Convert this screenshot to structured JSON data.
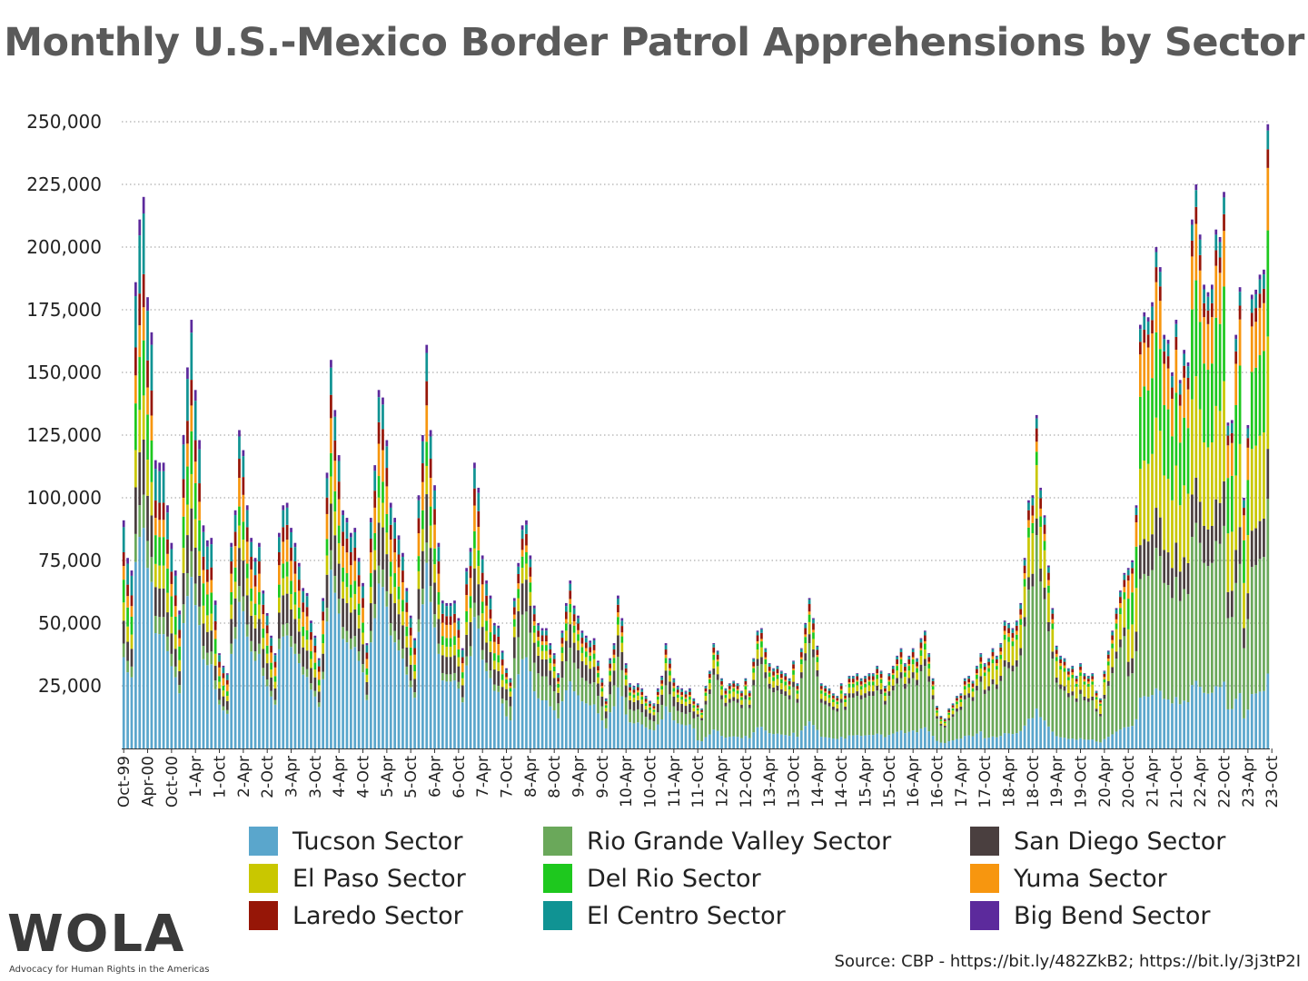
{
  "chart_data": {
    "type": "bar",
    "stacked": true,
    "title": "Monthly U.S.-Mexico Border Patrol Apprehensions by Sector",
    "ylim": [
      0,
      250000
    ],
    "yticks": [
      "25,000",
      "50,000",
      "75,000",
      "100,000",
      "125,000",
      "150,000",
      "175,000",
      "200,000",
      "225,000",
      "250,000"
    ],
    "ytick_values": [
      25000,
      50000,
      75000,
      100000,
      125000,
      150000,
      175000,
      200000,
      225000,
      250000
    ],
    "grid": "dotted horizontal",
    "legend_position": "bottom",
    "x_tick_labels": [
      "Oct-99",
      "Apr-00",
      "Oct-00",
      "1-Apr",
      "1-Oct",
      "2-Apr",
      "2-Oct",
      "3-Apr",
      "3-Oct",
      "4-Apr",
      "4-Oct",
      "5-Apr",
      "5-Oct",
      "6-Apr",
      "6-Oct",
      "7-Apr",
      "7-Oct",
      "8-Apr",
      "8-Oct",
      "9-Apr",
      "9-Oct",
      "10-Apr",
      "10-Oct",
      "11-Apr",
      "11-Oct",
      "12-Apr",
      "12-Oct",
      "13-Apr",
      "13-Oct",
      "14-Apr",
      "14-Oct",
      "15-Apr",
      "15-Oct",
      "16-Apr",
      "16-Oct",
      "17-Apr",
      "17-Oct",
      "18-Apr",
      "18-Oct",
      "19-Apr",
      "19-Oct",
      "20-Apr",
      "20-Oct",
      "21-Apr",
      "21-Oct",
      "22-Apr",
      "22-Oct",
      "23-Apr",
      "23-Oct"
    ],
    "sector_order": [
      "Tucson Sector",
      "Rio Grande Valley Sector",
      "San Diego Sector",
      "El Paso Sector",
      "Del Rio Sector",
      "Yuma Sector",
      "Laredo Sector",
      "El Centro Sector",
      "Big Bend Sector"
    ],
    "series": [
      {
        "name": "Tucson Sector",
        "color": "#5aa6cc"
      },
      {
        "name": "Rio Grande Valley Sector",
        "color": "#6aa85a"
      },
      {
        "name": "San Diego Sector",
        "color": "#4a3f3f"
      },
      {
        "name": "El Paso Sector",
        "color": "#c9c700"
      },
      {
        "name": "Del Rio Sector",
        "color": "#1ec81e"
      },
      {
        "name": "Yuma Sector",
        "color": "#f7960f"
      },
      {
        "name": "Laredo Sector",
        "color": "#961607"
      },
      {
        "name": "El Centro Sector",
        "color": "#109393"
      },
      {
        "name": "Big Bend Sector",
        "color": "#5c2a9c"
      }
    ],
    "totals_by_month": [
      91000,
      76000,
      71000,
      186000,
      211000,
      220000,
      180000,
      166000,
      115000,
      114000,
      114000,
      97000,
      82000,
      71000,
      55000,
      125000,
      152000,
      171000,
      143000,
      123000,
      89000,
      83000,
      84000,
      59000,
      38000,
      33000,
      30000,
      82000,
      95000,
      127000,
      119000,
      97000,
      84000,
      76000,
      82000,
      63000,
      54000,
      45000,
      38000,
      86000,
      97000,
      98000,
      88000,
      82000,
      74000,
      64000,
      62000,
      51000,
      45000,
      36000,
      60000,
      110000,
      155000,
      135000,
      117000,
      95000,
      92000,
      86000,
      88000,
      76000,
      66000,
      42000,
      92000,
      113000,
      143000,
      140000,
      123000,
      98000,
      92000,
      85000,
      78000,
      64000,
      53000,
      44000,
      101000,
      125000,
      161000,
      127000,
      105000,
      82000,
      59000,
      58000,
      58000,
      59000,
      52000,
      40000,
      72000,
      80000,
      114000,
      104000,
      77000,
      67000,
      61000,
      50000,
      49000,
      39000,
      32000,
      28000,
      60000,
      74000,
      89000,
      91000,
      77000,
      57000,
      50000,
      48000,
      48000,
      42000,
      38000,
      30000,
      47000,
      58000,
      67000,
      57000,
      53000,
      47000,
      45000,
      43000,
      44000,
      35000,
      28000,
      20000,
      36000,
      42000,
      61000,
      52000,
      34000,
      26000,
      25000,
      26000,
      24000,
      21000,
      19000,
      18000,
      24000,
      29000,
      42000,
      36000,
      28000,
      25000,
      24000,
      23000,
      24000,
      20000,
      18000,
      16000,
      25000,
      31000,
      42000,
      39000,
      28000,
      24000,
      26000,
      27000,
      26000,
      23000,
      28000,
      23000,
      36000,
      47000,
      48000,
      40000,
      34000,
      32000,
      33000,
      31000,
      30000,
      28000,
      35000,
      26000,
      40000,
      50000,
      60000,
      52000,
      41000,
      26000,
      25000,
      24000,
      22000,
      21000,
      26000,
      22000,
      29000,
      29000,
      30000,
      28000,
      29000,
      30000,
      30000,
      33000,
      31000,
      25000,
      30000,
      33000,
      37000,
      40000,
      34000,
      37000,
      40000,
      36000,
      44000,
      47000,
      38000,
      28000,
      17000,
      13000,
      12000,
      16000,
      18000,
      21000,
      22000,
      28000,
      29000,
      27000,
      33000,
      38000,
      34000,
      36000,
      40000,
      37000,
      42000,
      51000,
      50000,
      48000,
      51000,
      58000,
      76000,
      99000,
      101000,
      133000,
      104000,
      93000,
      73000,
      56000,
      41000,
      37000,
      36000,
      32000,
      33000,
      29000,
      34000,
      30000,
      29000,
      30000,
      23000,
      20000,
      31000,
      39000,
      47000,
      56000,
      63000,
      70000,
      72000,
      75000,
      97000,
      169000,
      174000,
      172000,
      178000,
      200000,
      192000,
      165000,
      163000,
      150000,
      171000,
      147000,
      159000,
      154000,
      211000,
      225000,
      205000,
      185000,
      182000,
      185000,
      207000,
      204000,
      222000,
      130000,
      131000,
      165000,
      184000,
      100000,
      129000,
      181000,
      183000,
      189000,
      191000,
      249000
    ]
  },
  "legend": [
    {
      "label": "Tucson Sector",
      "color": "#5aa6cc"
    },
    {
      "label": "Rio Grande Valley Sector",
      "color": "#6aa85a"
    },
    {
      "label": "San Diego Sector",
      "color": "#4a3f3f"
    },
    {
      "label": "El Paso Sector",
      "color": "#c9c700"
    },
    {
      "label": "Del Rio Sector",
      "color": "#1ec81e"
    },
    {
      "label": "Yuma Sector",
      "color": "#f7960f"
    },
    {
      "label": "Laredo Sector",
      "color": "#961607"
    },
    {
      "label": "El Centro Sector",
      "color": "#109393"
    },
    {
      "label": "Big Bend Sector",
      "color": "#5c2a9c"
    }
  ],
  "source": "Source: CBP - https://bit.ly/482ZkB2; https://bit.ly/3j3tP2I",
  "logo": {
    "wordmark": "WOLA",
    "tagline": "Advocacy for Human Rights in the Americas"
  }
}
